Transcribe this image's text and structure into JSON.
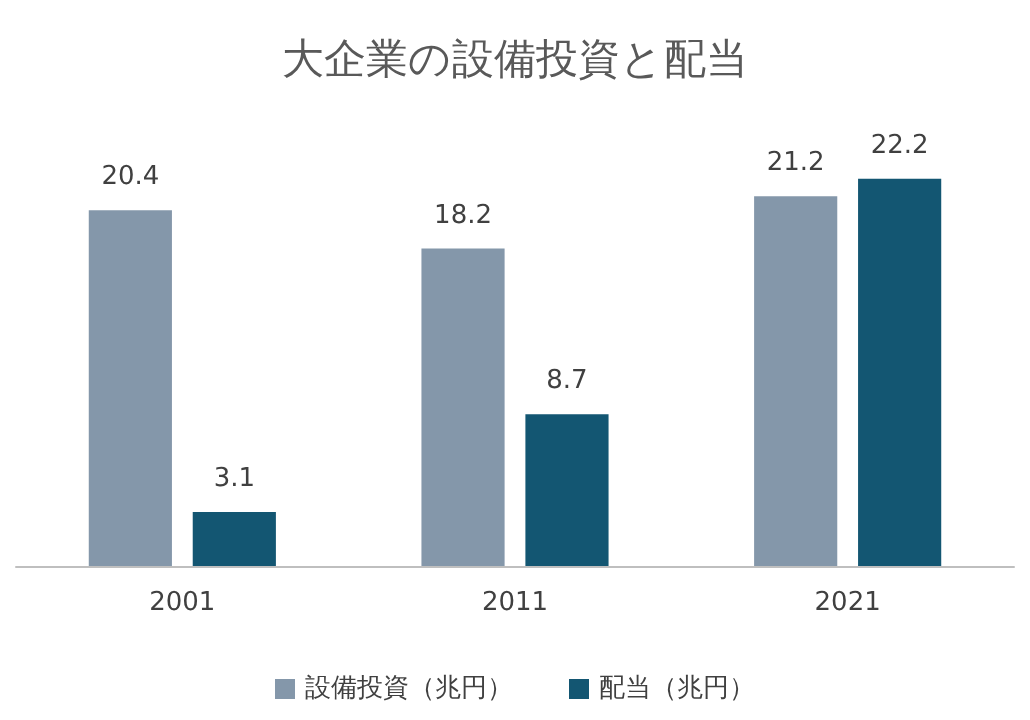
{
  "chart_data": {
    "type": "bar",
    "title": "大企業の設備投資と配当",
    "categories": [
      "2001",
      "2011",
      "2021"
    ],
    "series": [
      {
        "name": "設備投資（兆円）",
        "color": "#8497aa",
        "values": [
          20.4,
          18.2,
          21.2
        ]
      },
      {
        "name": "配当（兆円）",
        "color": "#135672",
        "values": [
          3.1,
          8.7,
          22.2
        ]
      }
    ],
    "data_labels": true,
    "legend": "bottom"
  }
}
